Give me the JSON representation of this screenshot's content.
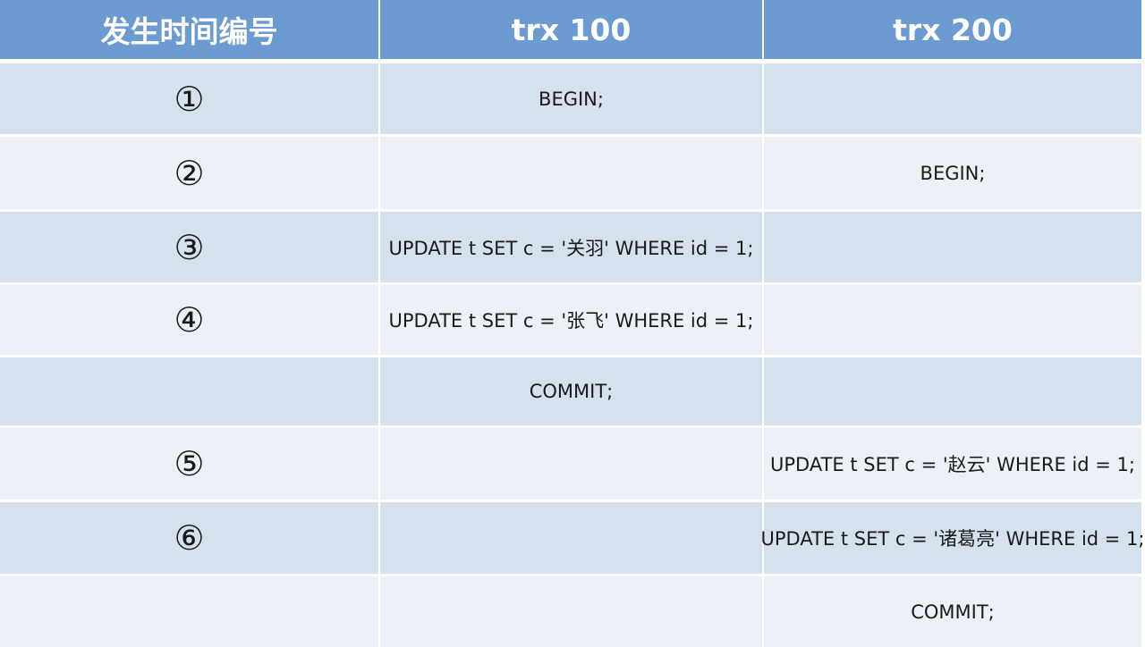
{
  "header": {
    "col1": "发生时间编号",
    "col2": "trx 100",
    "col3": "trx 200"
  },
  "rows": [
    {
      "num": "①",
      "trx100": "BEGIN;",
      "trx200": ""
    },
    {
      "num": "②",
      "trx100": "",
      "trx200": "BEGIN;"
    },
    {
      "num": "③",
      "trx100": "UPDATE t SET c = '关羽' WHERE id = 1;",
      "trx200": ""
    },
    {
      "num": "④",
      "trx100": "UPDATE t SET c = '张飞' WHERE id = 1;",
      "trx200": ""
    },
    {
      "num": "",
      "trx100": "COMMIT;",
      "trx200": ""
    },
    {
      "num": "⑤",
      "trx100": "",
      "trx200": "UPDATE t SET c = '赵云' WHERE id = 1;"
    },
    {
      "num": "⑥",
      "trx100": "",
      "trx200": "UPDATE t SET c = '诸葛亮' WHERE id = 1;"
    },
    {
      "num": "",
      "trx100": "",
      "trx200": "COMMIT;"
    }
  ],
  "colors": {
    "header_bg": "#6b9bd0",
    "row_odd_bg": "#d6e1ee",
    "row_even_bg": "#edf1f7"
  }
}
